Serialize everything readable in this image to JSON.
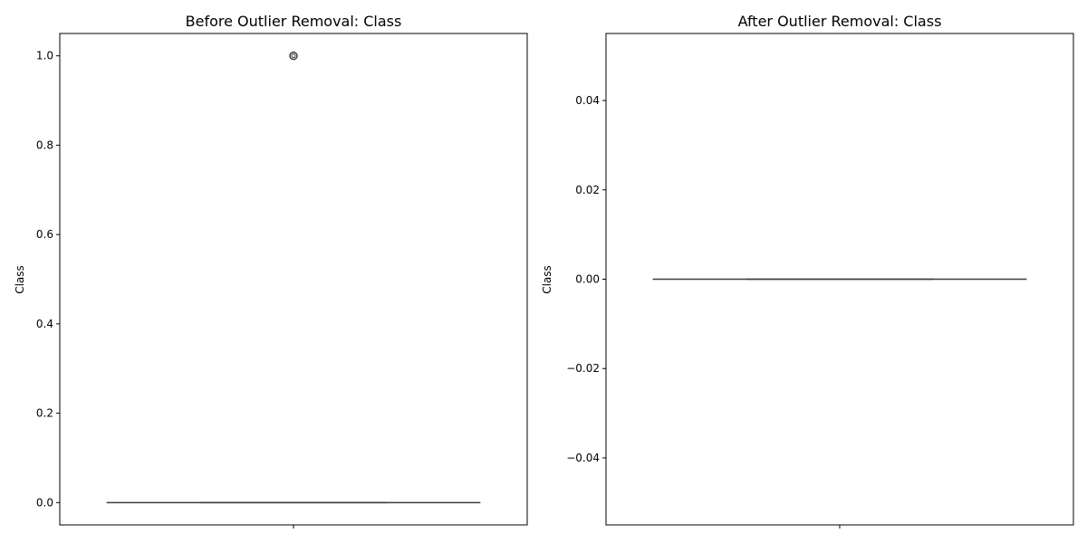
{
  "chart_data": [
    {
      "type": "box",
      "title": "Before Outlier Removal: Class",
      "xlabel": "",
      "ylabel": "Class",
      "ylim": [
        -0.05,
        1.05
      ],
      "yticks": [
        0.0,
        0.2,
        0.4,
        0.6,
        0.8,
        1.0
      ],
      "ytick_labels": [
        "0.0",
        "0.2",
        "0.4",
        "0.6",
        "0.8",
        "1.0"
      ],
      "grid": false,
      "box": {
        "q1": 0.0,
        "median": 0.0,
        "q3": 0.0,
        "whisker_low": 0.0,
        "whisker_high": 0.0
      },
      "outliers": [
        1.0
      ],
      "colors": {
        "box_line": "#3d3d3d",
        "frame": "#000000"
      }
    },
    {
      "type": "box",
      "title": "After Outlier Removal: Class",
      "xlabel": "",
      "ylabel": "Class",
      "ylim": [
        -0.055,
        0.055
      ],
      "yticks": [
        -0.04,
        -0.02,
        0.0,
        0.02,
        0.04
      ],
      "ytick_labels": [
        "−0.04",
        "−0.02",
        "0.00",
        "0.02",
        "0.04"
      ],
      "grid": false,
      "box": {
        "q1": 0.0,
        "median": 0.0,
        "q3": 0.0,
        "whisker_low": 0.0,
        "whisker_high": 0.0
      },
      "outliers": [],
      "colors": {
        "box_line": "#3d3d3d",
        "frame": "#000000"
      }
    }
  ]
}
